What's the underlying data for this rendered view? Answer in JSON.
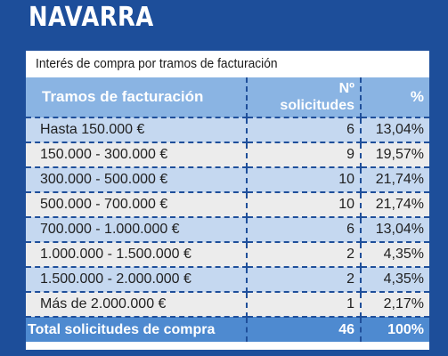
{
  "region": "NAVARRA",
  "subtitle": "Interés de compra por tramos de facturación",
  "headers": {
    "tramo": "Tramos de facturación",
    "num_line1": "Nº",
    "num_line2": "solicitudes",
    "pct": "%"
  },
  "rows": [
    {
      "tramo": "Hasta 150.000 €",
      "num": "6",
      "pct": "13,04%"
    },
    {
      "tramo": "150.000 - 300.000 €",
      "num": "9",
      "pct": "19,57%"
    },
    {
      "tramo": "300.000 - 500.000 €",
      "num": "10",
      "pct": "21,74%"
    },
    {
      "tramo": "500.000 - 700.000 €",
      "num": "10",
      "pct": "21,74%"
    },
    {
      "tramo": "700.000 - 1.000.000 €",
      "num": "6",
      "pct": "13,04%"
    },
    {
      "tramo": "1.000.000 - 1.500.000 €",
      "num": "2",
      "pct": "4,35%"
    },
    {
      "tramo": "1.500.000 - 2.000.000 €",
      "num": "2",
      "pct": "4,35%"
    },
    {
      "tramo": "Más de 2.000.000 €",
      "num": "1",
      "pct": "2,17%"
    }
  ],
  "total": {
    "label": "Total solicitudes de compra",
    "num": "46",
    "pct": "100%"
  },
  "colors": {
    "background": "#1d4e9a",
    "header": "#8ab4e3",
    "row_light_blue": "#c5d8f0",
    "row_gray": "#ececec",
    "total_row": "#4e8ad0"
  }
}
